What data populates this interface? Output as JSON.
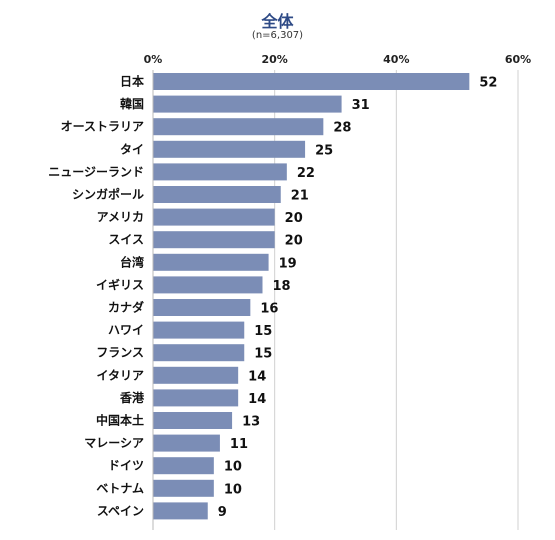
{
  "chart_data": {
    "type": "bar",
    "orientation": "horizontal",
    "title": "全体",
    "subtitle": "(n=6,307)",
    "categories": [
      "日本",
      "韓国",
      "オーストラリア",
      "タイ",
      "ニュージーランド",
      "シンガポール",
      "アメリカ",
      "スイス",
      "台湾",
      "イギリス",
      "カナダ",
      "ハワイ",
      "フランス",
      "イタリア",
      "香港",
      "中国本土",
      "マレーシア",
      "ドイツ",
      "ベトナム",
      "スペイン"
    ],
    "values": [
      52,
      31,
      28,
      25,
      22,
      21,
      20,
      20,
      19,
      18,
      16,
      15,
      15,
      14,
      14,
      13,
      11,
      10,
      10,
      9
    ],
    "value_labels": [
      "52",
      "31",
      "28",
      "25",
      "22",
      "21",
      "20",
      "20",
      "19",
      "18",
      "16",
      "15",
      "15",
      "14",
      "14",
      "13",
      "11",
      "10",
      "10",
      "9"
    ],
    "x_ticks": [
      "0%",
      "20%",
      "40%",
      "60%"
    ],
    "x_tick_values": [
      0,
      20,
      40,
      60
    ],
    "xlim": [
      0,
      60
    ],
    "bar_color": "#7b8db6",
    "grid": true,
    "gridline_color": "#d0d0d0",
    "legend": "none"
  }
}
